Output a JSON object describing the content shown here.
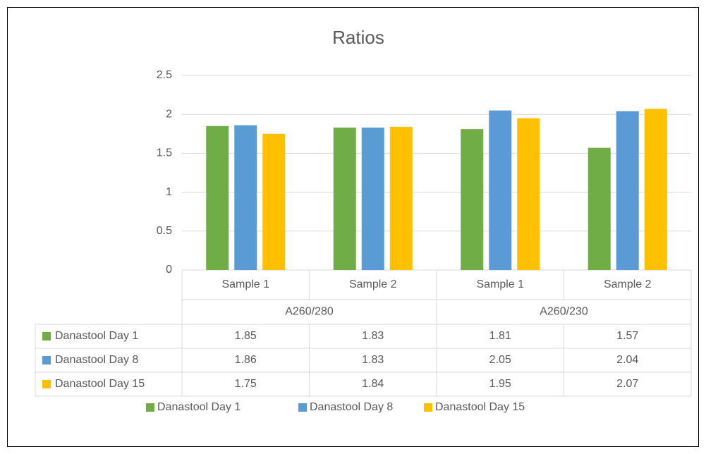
{
  "chart_data": {
    "type": "bar",
    "title": "Ratios",
    "groups": [
      {
        "name": "A260/280",
        "categories": [
          "Sample 1",
          "Sample 2"
        ]
      },
      {
        "name": "A260/230",
        "categories": [
          "Sample 1",
          "Sample 2"
        ]
      }
    ],
    "series": [
      {
        "name": "Danastool Day 1",
        "color": "#70ad47",
        "values": [
          1.85,
          1.83,
          1.81,
          1.57
        ]
      },
      {
        "name": "Danastool Day 8",
        "color": "#5b9bd5",
        "values": [
          1.86,
          1.83,
          2.05,
          2.04
        ]
      },
      {
        "name": "Danastool Day 15",
        "color": "#ffc000",
        "values": [
          1.75,
          1.84,
          1.95,
          2.07
        ]
      }
    ],
    "ylim": [
      0,
      2.5
    ],
    "yticks": [
      0,
      0.5,
      1,
      1.5,
      2,
      2.5
    ],
    "grid": true,
    "legend": "bottom",
    "data_table": true
  }
}
